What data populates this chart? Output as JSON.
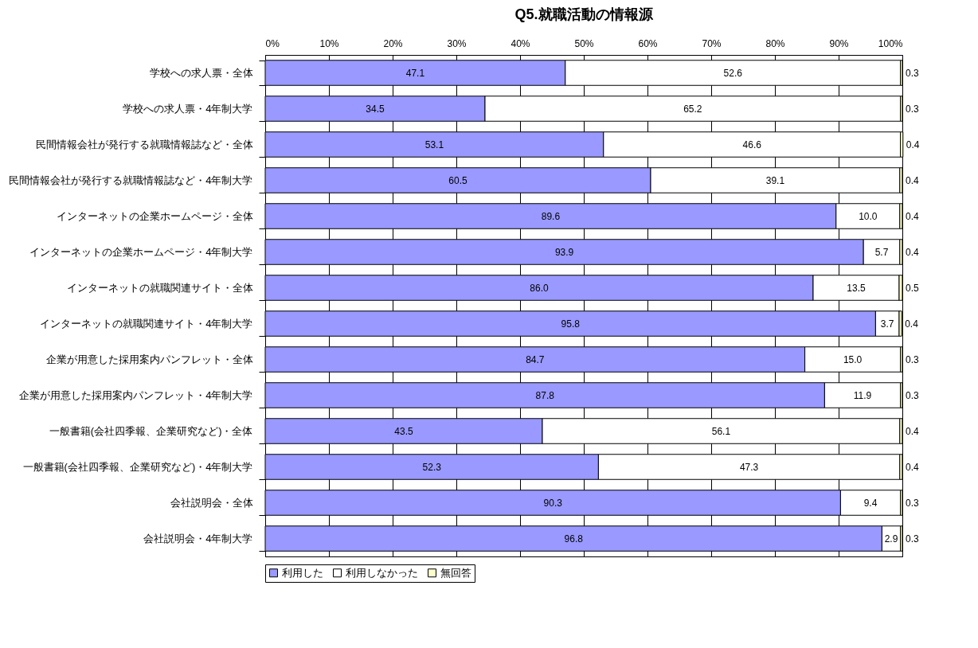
{
  "chart_data": {
    "type": "bar",
    "orientation": "horizontal",
    "stacked": true,
    "title": "Q5.就職活動の情報源",
    "categories": [
      "学校への求人票・全体",
      "学校への求人票・4年制大学",
      "民間情報会社が発行する就職情報誌など・全体",
      "民間情報会社が発行する就職情報誌など・4年制大学",
      "インターネットの企業ホームページ・全体",
      "インターネットの企業ホームページ・4年制大学",
      "インターネットの就職関連サイト・全体",
      "インターネットの就職関連サイト・4年制大学",
      "企業が用意した採用案内パンフレット・全体",
      "企業が用意した採用案内パンフレット・4年制大学",
      "一般書籍(会社四季報、企業研究など)・全体",
      "一般書籍(会社四季報、企業研究など)・4年制大学",
      "会社説明会・全体",
      "会社説明会・4年制大学"
    ],
    "series": [
      {
        "name": "利用した",
        "color": "#9999ff",
        "values": [
          47.1,
          34.5,
          53.1,
          60.5,
          89.6,
          93.9,
          86.0,
          95.8,
          84.7,
          87.8,
          43.5,
          52.3,
          90.3,
          96.8
        ],
        "value_labels": [
          "47.1",
          "34.5",
          "53.1",
          "60.5",
          "89.6",
          "93.9",
          "86.0",
          "95.8",
          "84.7",
          "87.8",
          "43.5",
          "52.3",
          "90.3",
          "96.8"
        ]
      },
      {
        "name": "利用しなかった",
        "color": "#ffffff",
        "values": [
          52.6,
          65.2,
          46.6,
          39.1,
          10.0,
          5.7,
          13.5,
          3.7,
          15.0,
          11.9,
          56.1,
          47.3,
          9.4,
          2.9
        ],
        "value_labels": [
          "52.6",
          "65.2",
          "46.6",
          "39.1",
          "10.0",
          "5.7",
          "13.5",
          "3.7",
          "15.0",
          "11.9",
          "56.1",
          "47.3",
          "9.4",
          "2.9"
        ]
      },
      {
        "name": "無回答",
        "color": "#ffffcc",
        "values": [
          0.3,
          0.3,
          0.4,
          0.4,
          0.4,
          0.4,
          0.5,
          0.4,
          0.3,
          0.3,
          0.4,
          0.4,
          0.3,
          0.3
        ],
        "value_labels": [
          "0.3",
          "0.3",
          "0.4",
          "0.4",
          "0.4",
          "0.4",
          "0.5",
          "0.4",
          "0.3",
          "0.3",
          "0.4",
          "0.4",
          "0.3",
          "0.3"
        ]
      }
    ],
    "xlim": [
      0,
      100
    ],
    "xticks": [
      {
        "value": 0,
        "label": "0%"
      },
      {
        "value": 10,
        "label": "10%"
      },
      {
        "value": 20,
        "label": "20%"
      },
      {
        "value": 30,
        "label": "30%"
      },
      {
        "value": 40,
        "label": "40%"
      },
      {
        "value": 50,
        "label": "50%"
      },
      {
        "value": 60,
        "label": "60%"
      },
      {
        "value": 70,
        "label": "70%"
      },
      {
        "value": 80,
        "label": "80%"
      },
      {
        "value": 90,
        "label": "90%"
      },
      {
        "value": 100,
        "label": "100%"
      }
    ],
    "grid": "x",
    "legend": "bottom"
  }
}
